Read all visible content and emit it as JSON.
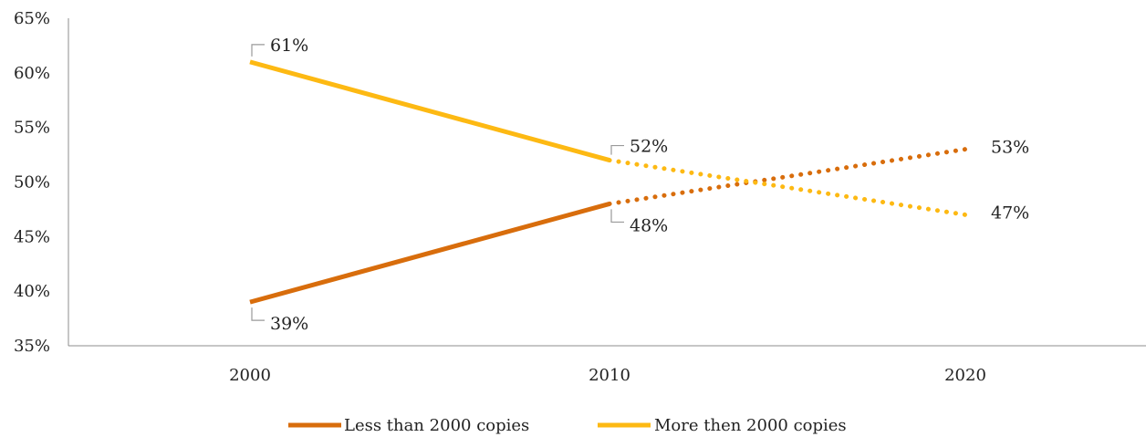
{
  "chart_data": {
    "type": "line",
    "title": "",
    "xlabel": "",
    "ylabel": "",
    "categories": [
      "2000",
      "2010",
      "2020"
    ],
    "ylim": [
      0.35,
      0.65
    ],
    "yticks": [
      "35%",
      "40%",
      "45%",
      "50%",
      "55%",
      "60%",
      "65%"
    ],
    "grid": false,
    "legend_position": "bottom",
    "series": [
      {
        "name": "Less than 2000 copies",
        "values": [
          0.39,
          0.48,
          0.53
        ],
        "labels": [
          "39%",
          "48%",
          "53%"
        ],
        "color": "#D86D0C",
        "projected_from_index": 1
      },
      {
        "name": "More then 2000 copies",
        "values": [
          0.61,
          0.52,
          0.47
        ],
        "labels": [
          "61%",
          "52%",
          "47%"
        ],
        "color": "#FDB913",
        "projected_from_index": 1
      }
    ]
  }
}
